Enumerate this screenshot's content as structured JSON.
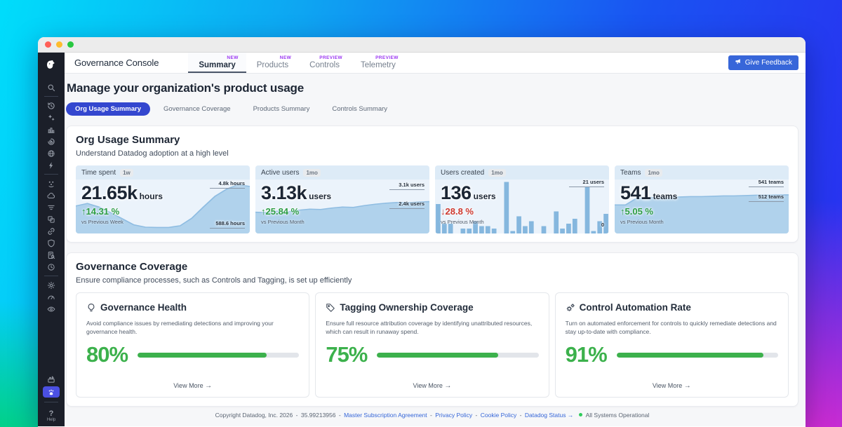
{
  "topnav": {
    "app_title": "Governance Console",
    "tabs": [
      {
        "label": "Summary",
        "badge": "NEW"
      },
      {
        "label": "Products",
        "badge": "NEW"
      },
      {
        "label": "Controls",
        "badge": "PREVIEW"
      },
      {
        "label": "Telemetry",
        "badge": "PREVIEW"
      }
    ],
    "feedback_label": "Give Feedback"
  },
  "sidebar": {
    "icons": [
      "datadog-logo",
      "search-icon",
      "history-icon",
      "sparkles-icon",
      "infrastructure-icon",
      "apm-icon",
      "network-icon",
      "lightning-icon",
      "watchdog-icon",
      "cloud-icon",
      "logs-icon",
      "software-catalog-icon",
      "link-icon",
      "security-shield-icon",
      "audit-icon",
      "schedule-icon",
      "gear-icon",
      "gauge-icon",
      "monitor-eye-icon",
      "process-icon",
      "governance-icon",
      "help-icon"
    ],
    "help_label": "Help"
  },
  "page": {
    "heading": "Manage your organization's product usage",
    "pills": [
      "Org Usage Summary",
      "Governance Coverage",
      "Products Summary",
      "Controls Summary"
    ]
  },
  "org_usage": {
    "title": "Org Usage Summary",
    "subtitle": "Understand Datadog adoption at a high level",
    "metrics": [
      {
        "name": "Time spent",
        "period": "1w",
        "value": "21.65k",
        "unit": "hours",
        "delta": "14.31 %",
        "direction": "up",
        "vs": "vs Previous Week",
        "max_label": "4.8k hours",
        "min_label": "588.6 hours"
      },
      {
        "name": "Active users",
        "period": "1mo",
        "value": "3.13k",
        "unit": "users",
        "delta": "25.84 %",
        "direction": "up",
        "vs": "vs Previous Month",
        "max_label": "3.1k users",
        "min_label": "2.4k users"
      },
      {
        "name": "Users created",
        "period": "1mo",
        "value": "136",
        "unit": "users",
        "delta": "28.8 %",
        "direction": "down",
        "vs": "vs Previous Month",
        "max_label": "21 users",
        "min_label": "0"
      },
      {
        "name": "Teams",
        "period": "1mo",
        "value": "541",
        "unit": "teams",
        "delta": "5.05 %",
        "direction": "up",
        "vs": "vs Previous Month",
        "max_label": "541 teams",
        "min_label": "512 teams"
      }
    ]
  },
  "governance": {
    "title": "Governance Coverage",
    "subtitle": "Ensure compliance processes, such as Controls and Tagging, is set up efficiently",
    "cards": [
      {
        "icon": "lightbulb-icon",
        "title": "Governance Health",
        "description": "Avoid compliance issues by remediating detections and improving your governance health.",
        "percent": 80,
        "percent_label": "80%",
        "view_more": "View More"
      },
      {
        "icon": "tag-icon",
        "title": "Tagging Ownership Coverage",
        "description": "Ensure full resource attribution coverage by identifying unattributed resources, which can result in runaway spend.",
        "percent": 75,
        "percent_label": "75%",
        "view_more": "View More"
      },
      {
        "icon": "gears-icon",
        "title": "Control Automation Rate",
        "description": "Turn on automated enforcement for controls to quickly remediate detections and stay up-to-date with compliance.",
        "percent": 91,
        "percent_label": "91%",
        "view_more": "View More"
      }
    ]
  },
  "footer": {
    "copyright": "Copyright Datadog, Inc. 2026",
    "version": "35.99213956",
    "sep": "-",
    "links": [
      "Master Subscription Agreement",
      "Privacy Policy",
      "Cookie Policy",
      "Datadog Status →"
    ],
    "status": "All Systems Operational"
  },
  "icons": {
    "arrow_right": "→"
  },
  "colors": {
    "accent_blue": "#3447cf",
    "button_blue": "#3766d9",
    "badge_purple": "#9a35f2",
    "green_up": "#2e9e44",
    "red_down": "#cf3a30",
    "percent_green": "#3cb14c",
    "chart_area": "#b0d2ec",
    "chart_line": "#8fbde2",
    "chart_bar": "#85b7de",
    "status_green": "#2fcc5b"
  },
  "chart_data": [
    {
      "type": "area",
      "title": "Time spent (1w)",
      "ylabel": "hours",
      "ylim": [
        0,
        5300
      ],
      "color": "#b0d2ec",
      "line": "#8fbde2",
      "annotations": [
        "4.8k hours",
        "588.6 hours"
      ],
      "values": [
        2700,
        2950,
        2600,
        2050,
        1450,
        850,
        620,
        590,
        590,
        760,
        1500,
        2600,
        3650,
        4350,
        4800,
        4620
      ]
    },
    {
      "type": "area",
      "title": "Active users (1mo)",
      "ylabel": "users",
      "ylim": [
        1300,
        4400
      ],
      "color": "#b0d2ec",
      "line": "#8fbde2",
      "annotations": [
        "3.1k users",
        "2.4k users"
      ],
      "values": [
        2520,
        2500,
        2580,
        2550,
        2640,
        2700,
        2680,
        2760,
        2820,
        2800,
        2900,
        2980,
        3040,
        3080,
        3060,
        3110,
        3130
      ]
    },
    {
      "type": "bar",
      "title": "Users created (1mo)",
      "ylabel": "users",
      "ylim": [
        0,
        22
      ],
      "color": "#85b7de",
      "annotations": [
        "21 users",
        "0"
      ],
      "values": [
        12,
        4,
        4,
        0,
        2,
        2,
        5,
        3,
        3,
        2,
        0,
        21,
        1,
        7,
        3,
        5,
        0,
        3,
        0,
        9,
        2,
        4,
        6,
        0,
        19,
        1,
        5,
        8
      ]
    },
    {
      "type": "area",
      "title": "Teams (1mo)",
      "ylabel": "teams",
      "ylim": [
        430,
        585
      ],
      "color": "#b0d2ec",
      "line": "#8fbde2",
      "annotations": [
        "541 teams",
        "512 teams"
      ],
      "values": [
        512,
        512,
        531,
        533,
        534,
        534,
        535,
        536,
        536,
        537,
        538,
        538,
        539,
        540,
        540,
        541,
        541
      ]
    }
  ]
}
